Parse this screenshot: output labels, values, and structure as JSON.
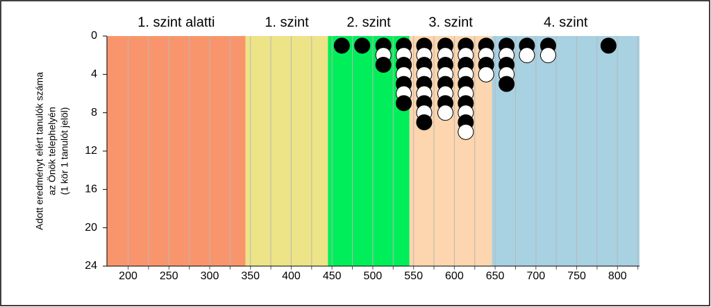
{
  "chart_data": {
    "type": "dotplot",
    "y_label": [
      "Adott eredményt elért tanulók száma",
      "az Önök telephelyén",
      "(1 kör 1 tanulót jelöl)"
    ],
    "bands": [
      {
        "label": "1. szint alatti",
        "from": 174,
        "to": 344,
        "color": "#f9956c"
      },
      {
        "label": "1. szint",
        "from": 344,
        "to": 445,
        "color": "#ede387"
      },
      {
        "label": "2. szint",
        "from": 445,
        "to": 545,
        "color": "#00ee5a"
      },
      {
        "label": "3. szint",
        "from": 545,
        "to": 646,
        "color": "#fdd5ae"
      },
      {
        "label": "4. szint",
        "from": 646,
        "to": 827,
        "color": "#a8d1e2"
      }
    ],
    "x": [
      462,
      487,
      513,
      538,
      563,
      589,
      614,
      639,
      664,
      689,
      715,
      789
    ],
    "counts": [
      1,
      1,
      3,
      7,
      9,
      8,
      10,
      4,
      5,
      2,
      2,
      1
    ],
    "dot_colors": [
      "#000000",
      "#ffffff"
    ],
    "xlim": [
      174,
      827
    ],
    "ylim": [
      0,
      24
    ],
    "y_inverted": true,
    "xticks": [
      200,
      250,
      300,
      350,
      400,
      450,
      500,
      550,
      600,
      650,
      700,
      750,
      800
    ],
    "grid_x": [
      200,
      225,
      250,
      275,
      300,
      325,
      350,
      375,
      400,
      425,
      450,
      475,
      500,
      525,
      550,
      575,
      600,
      625,
      650,
      675,
      700,
      725,
      750,
      775,
      800,
      825
    ],
    "yticks": [
      0,
      4,
      8,
      12,
      16,
      20,
      24
    ]
  }
}
